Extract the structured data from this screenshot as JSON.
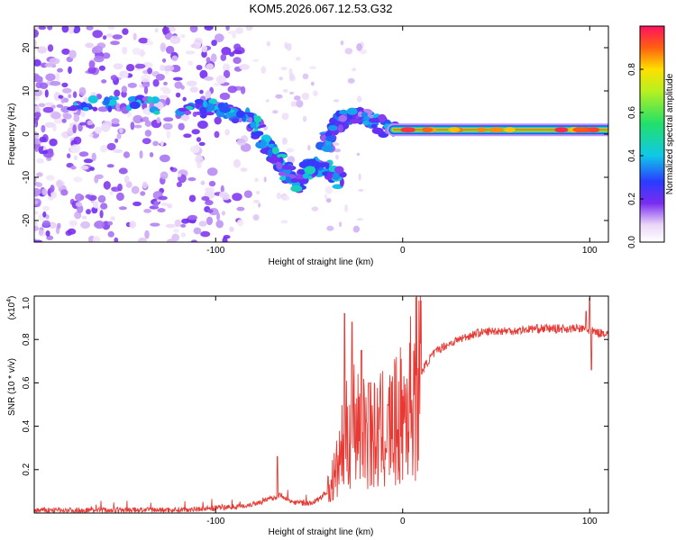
{
  "title": "KOM5.2026.067.12.53.G32",
  "chart_data": [
    {
      "type": "heatmap",
      "name": "spectrogram",
      "title": "KOM5.2026.067.12.53.G32",
      "xlabel": "Height of straight line (km)",
      "ylabel": "Frequency (Hz)",
      "xlim": [
        -197,
        110
      ],
      "ylim": [
        -25,
        25
      ],
      "xticks": [
        -100,
        0,
        100
      ],
      "xtick_labels": [
        "-100",
        "0",
        "100"
      ],
      "yticks": [
        -20,
        -10,
        0,
        10,
        20
      ],
      "ytick_labels": [
        "-20",
        "-10",
        "0",
        "10",
        "20"
      ],
      "colorbar": {
        "label": "Normalized spectral amplitude",
        "range": [
          0,
          1
        ],
        "ticks": [
          0.0,
          0.2,
          0.4,
          0.6,
          0.8
        ],
        "tick_labels": [
          "0.0",
          "0.2",
          "0.4",
          "0.6",
          "0.8"
        ]
      },
      "features": [
        {
          "name": "main-track",
          "points": [
            [
              -178,
              6
            ],
            [
              -150,
              7
            ],
            [
              -120,
              6
            ],
            [
              -100,
              6
            ],
            [
              -90,
              5
            ],
            [
              -80,
              3
            ],
            [
              -75,
              -1
            ],
            [
              -70,
              -4
            ],
            [
              -65,
              -7
            ],
            [
              -60,
              -10
            ],
            [
              -55,
              -12
            ],
            [
              -50,
              -8
            ],
            [
              -45,
              -7
            ],
            [
              -38,
              -9
            ],
            [
              -33,
              -11
            ]
          ],
          "amplitude": 0.35
        },
        {
          "name": "rising-branch",
          "points": [
            [
              -42,
              -3
            ],
            [
              -38,
              0
            ],
            [
              -34,
              3
            ],
            [
              -28,
              4
            ],
            [
              -20,
              4
            ],
            [
              -12,
              2
            ],
            [
              -5,
              1
            ]
          ],
          "amplitude": 0.3
        },
        {
          "name": "carrier-line",
          "points": [
            [
              -5,
              1
            ],
            [
              20,
              1
            ],
            [
              50,
              1
            ],
            [
              80,
              1
            ],
            [
              100,
              1
            ],
            [
              110,
              1
            ]
          ],
          "amplitude": 0.9
        }
      ]
    },
    {
      "type": "line",
      "name": "snr",
      "xlabel": "Height of straight line (km)",
      "ylabel": "SNR (10 * v/v)",
      "y_multiplier": "(x10^4)",
      "y_multiplier_base": "(x10",
      "y_multiplier_exp": "4",
      "y_multiplier_close": ")",
      "xlim": [
        -197,
        110
      ],
      "ylim": [
        0,
        1.0
      ],
      "xticks": [
        -100,
        0,
        100
      ],
      "xtick_labels": [
        "-100",
        "0",
        "100"
      ],
      "yticks": [
        0.2,
        0.4,
        0.6,
        0.8,
        1.0
      ],
      "ytick_labels": [
        "0.2",
        "0.4",
        "0.6",
        "0.8",
        "1.0"
      ],
      "color": "#e83a34",
      "envelope": [
        [
          -197,
          0.01
        ],
        [
          -120,
          0.012
        ],
        [
          -100,
          0.02
        ],
        [
          -85,
          0.03
        ],
        [
          -75,
          0.05
        ],
        [
          -65,
          0.08
        ],
        [
          -60,
          0.05
        ],
        [
          -50,
          0.04
        ],
        [
          -45,
          0.06
        ],
        [
          -40,
          0.1
        ],
        [
          -35,
          0.2
        ],
        [
          -32,
          0.3
        ],
        [
          -28,
          0.4
        ],
        [
          -24,
          0.45
        ],
        [
          -20,
          0.4
        ],
        [
          -15,
          0.35
        ],
        [
          -10,
          0.38
        ],
        [
          -5,
          0.4
        ],
        [
          0,
          0.45
        ],
        [
          5,
          0.55
        ],
        [
          10,
          0.65
        ],
        [
          15,
          0.72
        ],
        [
          20,
          0.76
        ],
        [
          30,
          0.8
        ],
        [
          40,
          0.83
        ],
        [
          50,
          0.84
        ],
        [
          60,
          0.84
        ],
        [
          70,
          0.85
        ],
        [
          80,
          0.85
        ],
        [
          90,
          0.85
        ],
        [
          95,
          0.85
        ],
        [
          100,
          0.84
        ],
        [
          105,
          0.83
        ],
        [
          110,
          0.83
        ]
      ],
      "spikes": [
        [
          -67,
          0.26
        ],
        [
          -31,
          0.92
        ],
        [
          -27,
          0.88
        ],
        [
          -22,
          0.75
        ],
        [
          -18,
          0.6
        ],
        [
          -8,
          0.5
        ],
        [
          100,
          0.99
        ],
        [
          98,
          0.93
        ],
        [
          101,
          0.66
        ]
      ]
    }
  ]
}
